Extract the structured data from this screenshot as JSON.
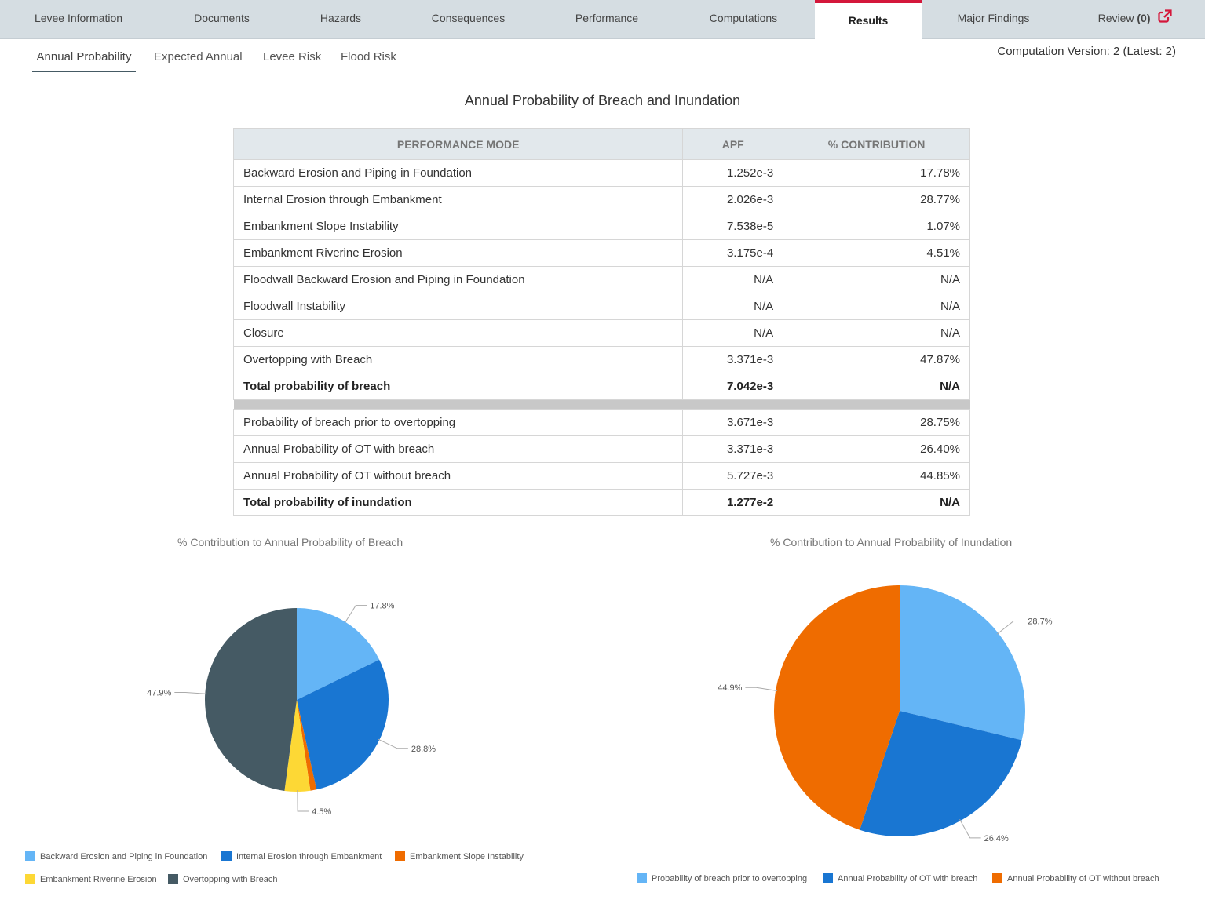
{
  "nav": {
    "tabs": [
      {
        "label": "Levee Information"
      },
      {
        "label": "Documents"
      },
      {
        "label": "Hazards"
      },
      {
        "label": "Consequences"
      },
      {
        "label": "Performance"
      },
      {
        "label": "Computations"
      },
      {
        "label": "Results",
        "active": true
      },
      {
        "label": "Major Findings"
      },
      {
        "label": "Review",
        "count": "(0)"
      }
    ],
    "accent_color": "#d4173b"
  },
  "subtabs": [
    {
      "label": "Annual Probability",
      "active": true
    },
    {
      "label": "Expected Annual"
    },
    {
      "label": "Levee Risk"
    },
    {
      "label": "Flood Risk"
    }
  ],
  "version_text": "Computation Version: 2 (Latest: 2)",
  "section_title": "Annual Probability of Breach and Inundation",
  "table": {
    "headers": [
      "PERFORMANCE MODE",
      "APF",
      "% CONTRIBUTION"
    ],
    "rows_breach": [
      [
        "Backward Erosion and Piping in Foundation",
        "1.252e-3",
        "17.78%"
      ],
      [
        "Internal Erosion through Embankment",
        "2.026e-3",
        "28.77%"
      ],
      [
        "Embankment Slope Instability",
        "7.538e-5",
        "1.07%"
      ],
      [
        "Embankment Riverine Erosion",
        "3.175e-4",
        "4.51%"
      ],
      [
        "Floodwall Backward Erosion and Piping in Foundation",
        "N/A",
        "N/A"
      ],
      [
        "Floodwall Instability",
        "N/A",
        "N/A"
      ],
      [
        "Closure",
        "N/A",
        "N/A"
      ],
      [
        "Overtopping with Breach",
        "3.371e-3",
        "47.87%"
      ]
    ],
    "total_breach": [
      "Total probability of breach",
      "7.042e-3",
      "N/A"
    ],
    "rows_inundation": [
      [
        "Probability of breach prior to overtopping",
        "3.671e-3",
        "28.75%"
      ],
      [
        "Annual Probability of OT with breach",
        "3.371e-3",
        "26.40%"
      ],
      [
        "Annual Probability of OT without breach",
        "5.727e-3",
        "44.85%"
      ]
    ],
    "total_inundation": [
      "Total probability of inundation",
      "1.277e-2",
      "N/A"
    ]
  },
  "chart_data": [
    {
      "type": "pie",
      "title": "% Contribution to Annual Probability of Breach",
      "categories": [
        "Backward Erosion and Piping in Foundation",
        "Internal Erosion through Embankment",
        "Embankment Slope Instability",
        "Embankment Riverine Erosion",
        "Overtopping with Breach"
      ],
      "values": [
        17.78,
        28.77,
        1.07,
        4.51,
        47.87
      ],
      "labels": [
        "17.8%",
        "28.8%",
        "",
        "4.5%",
        "47.9%"
      ],
      "colors": [
        "#64b5f6",
        "#1976d2",
        "#ef6c00",
        "#fdd835",
        "#455a64"
      ],
      "legend_position": "bottom"
    },
    {
      "type": "pie",
      "title": "% Contribution to Annual Probability of Inundation",
      "categories": [
        "Probability of breach prior to overtopping",
        "Annual Probability of OT with breach",
        "Annual Probability of OT without breach"
      ],
      "values": [
        28.75,
        26.4,
        44.85
      ],
      "labels": [
        "28.7%",
        "26.4%",
        "44.9%"
      ],
      "colors": [
        "#64b5f6",
        "#1976d2",
        "#ef6c00"
      ],
      "legend_position": "bottom"
    }
  ]
}
